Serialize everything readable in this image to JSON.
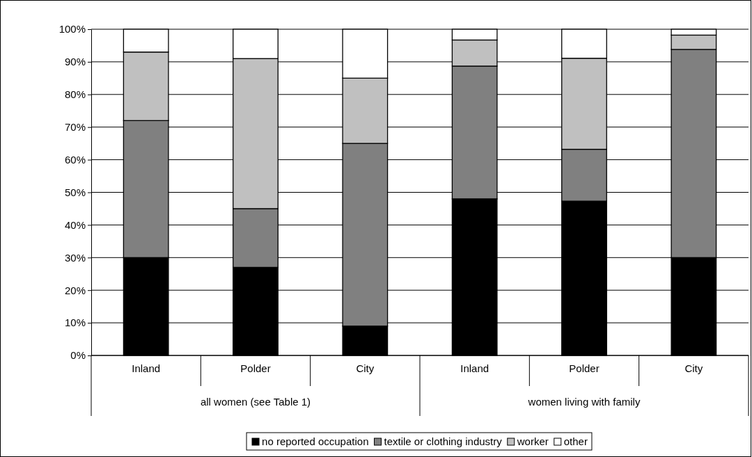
{
  "chart_data": {
    "type": "bar",
    "stacked": true,
    "categories": [
      "Inland",
      "Polder",
      "City",
      "Inland",
      "Polder",
      "City"
    ],
    "series": [
      {
        "name": "no reported occupation",
        "color": "#000000",
        "values": [
          30,
          27,
          9,
          48,
          47.3,
          30
        ]
      },
      {
        "name": "textile or clothing industry",
        "color": "#808080",
        "values": [
          42,
          18,
          56,
          40.7,
          15.9,
          63.8
        ]
      },
      {
        "name": "worker",
        "color": "#c0c0c0",
        "values": [
          21,
          46,
          20,
          8,
          27.9,
          4.4
        ]
      },
      {
        "name": "other",
        "color": "#ffffff",
        "values": [
          7,
          9,
          15,
          3.3,
          8.9,
          1.8
        ]
      }
    ],
    "annotations": [
      "all women (see Table 1)",
      "women living with family"
    ],
    "ylim": [
      0,
      100
    ],
    "yticks": [
      {
        "value": 0,
        "label": "0%"
      },
      {
        "value": 10,
        "label": "10%"
      },
      {
        "value": 20,
        "label": "20%"
      },
      {
        "value": 30,
        "label": "30%"
      },
      {
        "value": 40,
        "label": "40%"
      },
      {
        "value": 50,
        "label": "50%"
      },
      {
        "value": 60,
        "label": "60%"
      },
      {
        "value": 70,
        "label": "70%"
      },
      {
        "value": 80,
        "label": "80%"
      },
      {
        "value": 90,
        "label": "90%"
      },
      {
        "value": 100,
        "label": "100%"
      }
    ],
    "grid": "y",
    "legend": "bottom"
  }
}
